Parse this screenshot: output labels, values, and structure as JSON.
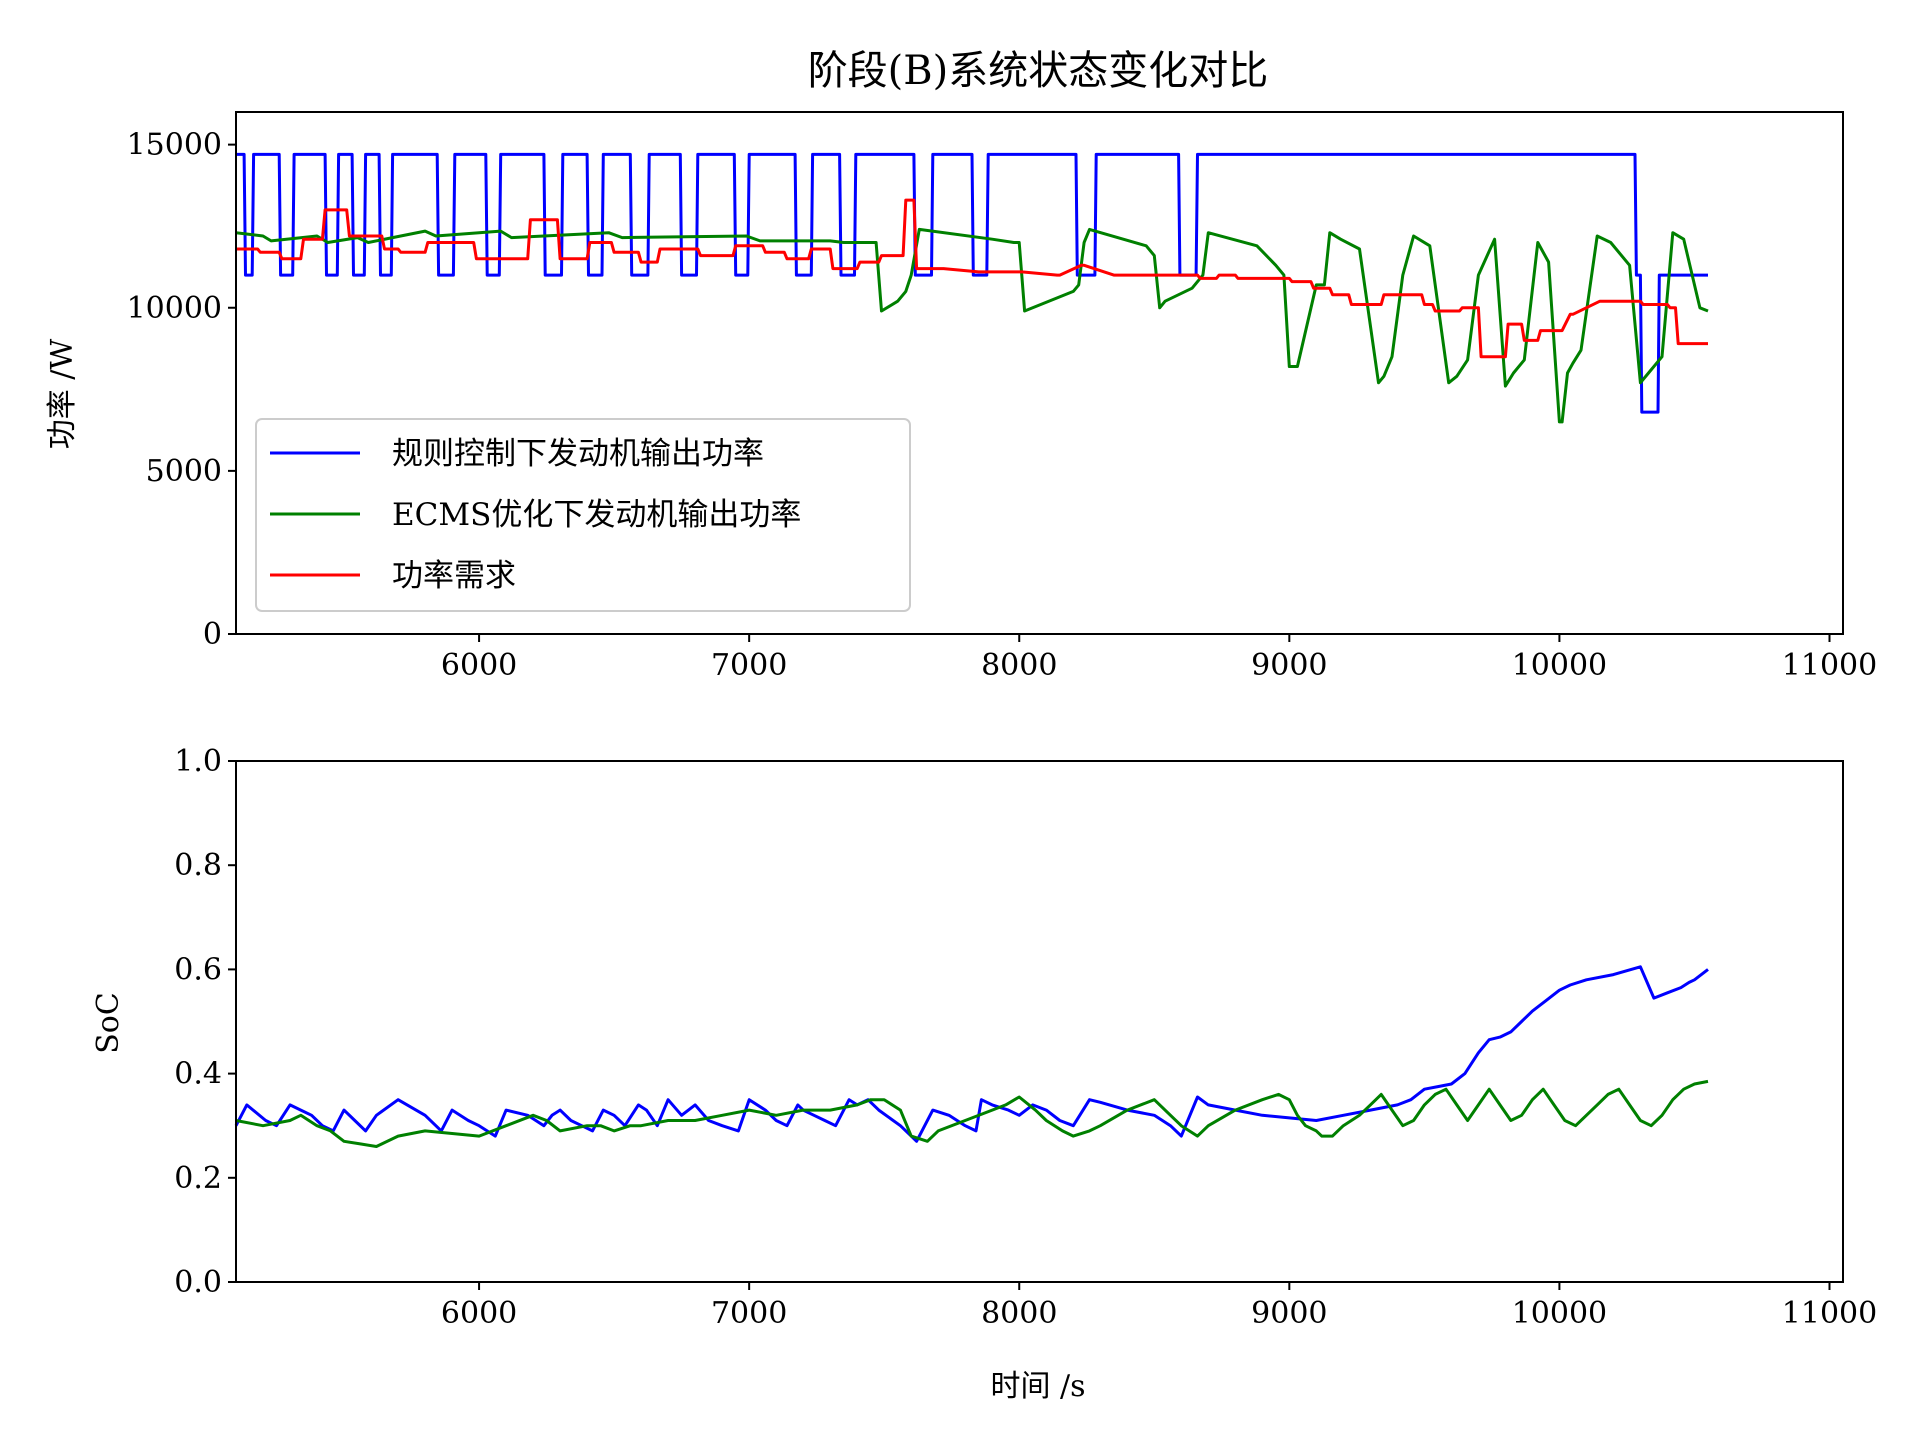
{
  "chart_data": [
    {
      "type": "line",
      "title": "阶段(B)系统状态变化对比",
      "xlabel": "",
      "ylabel": "功率 /W",
      "xlim": [
        5100,
        11050
      ],
      "ylim": [
        0,
        16000
      ],
      "xticks": [
        6000,
        7000,
        8000,
        9000,
        10000,
        11000
      ],
      "yticks": [
        0,
        5000,
        10000,
        15000
      ],
      "legend": "lower-left",
      "grid": false,
      "series": [
        {
          "name": "规则控制下发动机输出功率",
          "color": "#0000ff",
          "x": [
            5100,
            5130,
            5135,
            5160,
            5165,
            5260,
            5265,
            5310,
            5315,
            5430,
            5435,
            5475,
            5480,
            5530,
            5535,
            5575,
            5580,
            5630,
            5635,
            5675,
            5680,
            5845,
            5850,
            5905,
            5910,
            6025,
            6030,
            6075,
            6080,
            6240,
            6245,
            6305,
            6310,
            6400,
            6405,
            6455,
            6460,
            6560,
            6565,
            6625,
            6630,
            6745,
            6750,
            6805,
            6810,
            6945,
            6950,
            6995,
            7000,
            7170,
            7175,
            7230,
            7235,
            7335,
            7340,
            7390,
            7395,
            7610,
            7615,
            7675,
            7680,
            7825,
            7830,
            7880,
            7885,
            8210,
            8215,
            8280,
            8285,
            8590,
            8595,
            8655,
            8660,
            10280,
            10285,
            10300,
            10305,
            10365,
            10370,
            10550
          ],
          "y": [
            14700,
            14700,
            11000,
            11000,
            14700,
            14700,
            11000,
            11000,
            14700,
            14700,
            11000,
            11000,
            14700,
            14700,
            11000,
            11000,
            14700,
            14700,
            11000,
            11000,
            14700,
            14700,
            11000,
            11000,
            14700,
            14700,
            11000,
            11000,
            14700,
            14700,
            11000,
            11000,
            14700,
            14700,
            11000,
            11000,
            14700,
            14700,
            11000,
            11000,
            14700,
            14700,
            11000,
            11000,
            14700,
            14700,
            11000,
            11000,
            14700,
            14700,
            11000,
            11000,
            14700,
            14700,
            11000,
            11000,
            14700,
            14700,
            11000,
            11000,
            14700,
            14700,
            11000,
            11000,
            14700,
            14700,
            11000,
            11000,
            14700,
            14700,
            11000,
            11000,
            14700,
            14700,
            11000,
            11000,
            6800,
            6800,
            11000,
            11000
          ]
        },
        {
          "name": "ECMS优化下发动机输出功率",
          "color": "#008000",
          "x": [
            5100,
            5200,
            5230,
            5400,
            5440,
            5550,
            5590,
            5800,
            5840,
            6080,
            6120,
            6480,
            6530,
            6990,
            7040,
            7300,
            7350,
            7470,
            7490,
            7550,
            7580,
            7600,
            7630,
            7900,
            7980,
            8000,
            8020,
            8200,
            8220,
            8240,
            8260,
            8470,
            8500,
            8520,
            8540,
            8640,
            8680,
            8700,
            8880,
            8950,
            8980,
            9000,
            9030,
            9100,
            9130,
            9150,
            9190,
            9260,
            9330,
            9350,
            9380,
            9420,
            9460,
            9520,
            9590,
            9620,
            9660,
            9700,
            9760,
            9800,
            9830,
            9870,
            9920,
            9960,
            10000,
            10010,
            10030,
            10050,
            10080,
            10140,
            10190,
            10260,
            10300,
            10330,
            10380,
            10420,
            10460,
            10520,
            10550
          ],
          "y": [
            12300,
            12200,
            12050,
            12200,
            12000,
            12150,
            12000,
            12350,
            12200,
            12350,
            12150,
            12300,
            12150,
            12200,
            12050,
            12050,
            12000,
            12000,
            9900,
            10200,
            10500,
            11000,
            12400,
            12100,
            12000,
            12000,
            9900,
            10500,
            10700,
            12000,
            12400,
            11900,
            11600,
            10000,
            10200,
            10600,
            11000,
            12300,
            11900,
            11300,
            11000,
            8200,
            8200,
            10700,
            10700,
            12300,
            12100,
            11800,
            7700,
            7900,
            8500,
            11000,
            12200,
            11900,
            7700,
            7900,
            8400,
            11000,
            12100,
            7600,
            8000,
            8400,
            12000,
            11400,
            6500,
            6500,
            8000,
            8300,
            8700,
            12200,
            12000,
            11300,
            7700,
            8000,
            8500,
            12300,
            12100,
            10000,
            9900
          ]
        },
        {
          "name": "功率需求",
          "color": "#ff0000",
          "x": [
            5100,
            5180,
            5190,
            5260,
            5270,
            5340,
            5350,
            5420,
            5430,
            5510,
            5520,
            5640,
            5650,
            5700,
            5710,
            5800,
            5810,
            5980,
            5990,
            6180,
            6190,
            6290,
            6300,
            6400,
            6410,
            6490,
            6500,
            6590,
            6600,
            6660,
            6670,
            6810,
            6820,
            6940,
            6950,
            7050,
            7060,
            7130,
            7140,
            7220,
            7230,
            7300,
            7310,
            7400,
            7410,
            7480,
            7490,
            7570,
            7580,
            7610,
            7620,
            7700,
            7720,
            7850,
            7860,
            8000,
            8010,
            8140,
            8150,
            8230,
            8240,
            8350,
            8360,
            8500,
            8510,
            8660,
            8670,
            8730,
            8740,
            8800,
            8810,
            9000,
            9010,
            9080,
            9090,
            9150,
            9160,
            9220,
            9230,
            9340,
            9350,
            9490,
            9500,
            9530,
            9540,
            9630,
            9640,
            9700,
            9710,
            9800,
            9810,
            9860,
            9870,
            9920,
            9930,
            10000,
            10010,
            10040,
            10050,
            10150,
            10160,
            10300,
            10310,
            10400,
            10410,
            10430,
            10440,
            10550
          ],
          "y": [
            11800,
            11800,
            11700,
            11700,
            11500,
            11500,
            12100,
            12100,
            13000,
            13000,
            12200,
            12200,
            11800,
            11800,
            11700,
            11700,
            12000,
            12000,
            11500,
            11500,
            12700,
            12700,
            11500,
            11500,
            12000,
            12000,
            11700,
            11700,
            11400,
            11400,
            11800,
            11800,
            11600,
            11600,
            11900,
            11900,
            11700,
            11700,
            11500,
            11500,
            11800,
            11800,
            11200,
            11200,
            11400,
            11400,
            11600,
            11600,
            13300,
            13300,
            11200,
            11200,
            11200,
            11100,
            11100,
            11100,
            11100,
            11000,
            11000,
            11300,
            11300,
            11000,
            11000,
            11000,
            11000,
            11000,
            10900,
            10900,
            11000,
            11000,
            10900,
            10900,
            10800,
            10800,
            10600,
            10600,
            10400,
            10400,
            10100,
            10100,
            10400,
            10400,
            10100,
            10100,
            9900,
            9900,
            10000,
            10000,
            8500,
            8500,
            9500,
            9500,
            9000,
            9000,
            9300,
            9300,
            9300,
            9800,
            9800,
            10200,
            10200,
            10200,
            10100,
            10100,
            10000,
            10000,
            8900,
            8900
          ]
        }
      ]
    },
    {
      "type": "line",
      "title": "",
      "xlabel": "时间 /s",
      "ylabel": "SoC",
      "xlim": [
        5100,
        11050
      ],
      "ylim": [
        0.0,
        1.0
      ],
      "xticks": [
        6000,
        7000,
        8000,
        9000,
        10000,
        11000
      ],
      "yticks": [
        "0.0",
        "0.2",
        "0.4",
        "0.6",
        "0.8",
        "1.0"
      ],
      "grid": false,
      "series": [
        {
          "color": "#0000ff",
          "x": [
            5100,
            5140,
            5210,
            5250,
            5300,
            5340,
            5380,
            5420,
            5460,
            5500,
            5540,
            5580,
            5620,
            5700,
            5800,
            5860,
            5900,
            5960,
            6000,
            6060,
            6100,
            6180,
            6240,
            6270,
            6300,
            6340,
            6380,
            6420,
            6460,
            6500,
            6540,
            6590,
            6620,
            6660,
            6700,
            6750,
            6800,
            6850,
            6900,
            6960,
            7000,
            7060,
            7100,
            7140,
            7180,
            7200,
            7240,
            7280,
            7320,
            7370,
            7400,
            7440,
            7480,
            7560,
            7600,
            7620,
            7680,
            7740,
            7800,
            7840,
            7860,
            7900,
            7960,
            8000,
            8050,
            8100,
            8150,
            8200,
            8260,
            8300,
            8400,
            8500,
            8560,
            8600,
            8660,
            8700,
            8800,
            8900,
            9000,
            9100,
            9200,
            9300,
            9400,
            9450,
            9500,
            9550,
            9600,
            9650,
            9700,
            9740,
            9780,
            9820,
            9860,
            9900,
            9950,
            10000,
            10040,
            10100,
            10200,
            10300,
            10350,
            10400,
            10450,
            10480,
            10500,
            10550
          ],
          "y": [
            0.3,
            0.34,
            0.31,
            0.3,
            0.34,
            0.33,
            0.32,
            0.3,
            0.29,
            0.33,
            0.31,
            0.29,
            0.32,
            0.35,
            0.32,
            0.29,
            0.33,
            0.31,
            0.3,
            0.28,
            0.33,
            0.32,
            0.3,
            0.32,
            0.33,
            0.31,
            0.3,
            0.29,
            0.33,
            0.32,
            0.3,
            0.34,
            0.33,
            0.3,
            0.35,
            0.32,
            0.34,
            0.31,
            0.3,
            0.29,
            0.35,
            0.33,
            0.31,
            0.3,
            0.34,
            0.33,
            0.32,
            0.31,
            0.3,
            0.35,
            0.34,
            0.35,
            0.33,
            0.3,
            0.28,
            0.27,
            0.33,
            0.32,
            0.3,
            0.29,
            0.35,
            0.34,
            0.33,
            0.32,
            0.34,
            0.33,
            0.31,
            0.3,
            0.35,
            0.345,
            0.33,
            0.32,
            0.3,
            0.28,
            0.355,
            0.34,
            0.33,
            0.32,
            0.315,
            0.31,
            0.32,
            0.33,
            0.34,
            0.35,
            0.37,
            0.375,
            0.38,
            0.4,
            0.44,
            0.465,
            0.47,
            0.48,
            0.5,
            0.52,
            0.54,
            0.56,
            0.57,
            0.58,
            0.59,
            0.605,
            0.545,
            0.555,
            0.565,
            0.575,
            0.58,
            0.6
          ]
        },
        {
          "color": "#008000",
          "x": [
            5100,
            5200,
            5300,
            5340,
            5400,
            5450,
            5500,
            5560,
            5620,
            5700,
            5800,
            5900,
            6000,
            6100,
            6200,
            6250,
            6300,
            6400,
            6450,
            6500,
            6560,
            6600,
            6700,
            6800,
            6900,
            7000,
            7100,
            7200,
            7300,
            7400,
            7450,
            7500,
            7560,
            7600,
            7660,
            7700,
            7800,
            7900,
            7950,
            8000,
            8060,
            8100,
            8160,
            8200,
            8260,
            8300,
            8400,
            8500,
            8560,
            8600,
            8660,
            8700,
            8800,
            8900,
            8960,
            9000,
            9030,
            9060,
            9100,
            9120,
            9160,
            9200,
            9260,
            9300,
            9340,
            9380,
            9420,
            9460,
            9500,
            9540,
            9580,
            9620,
            9660,
            9700,
            9740,
            9780,
            9820,
            9860,
            9900,
            9940,
            9980,
            10020,
            10060,
            10100,
            10140,
            10180,
            10220,
            10260,
            10300,
            10340,
            10380,
            10420,
            10460,
            10500,
            10550
          ],
          "y": [
            0.31,
            0.3,
            0.31,
            0.32,
            0.3,
            0.29,
            0.27,
            0.265,
            0.26,
            0.28,
            0.29,
            0.285,
            0.28,
            0.3,
            0.32,
            0.31,
            0.29,
            0.3,
            0.3,
            0.29,
            0.3,
            0.3,
            0.31,
            0.31,
            0.32,
            0.33,
            0.32,
            0.33,
            0.33,
            0.34,
            0.35,
            0.35,
            0.33,
            0.28,
            0.27,
            0.29,
            0.31,
            0.33,
            0.34,
            0.355,
            0.33,
            0.31,
            0.29,
            0.28,
            0.29,
            0.3,
            0.33,
            0.35,
            0.32,
            0.3,
            0.28,
            0.3,
            0.33,
            0.35,
            0.36,
            0.35,
            0.32,
            0.3,
            0.29,
            0.28,
            0.28,
            0.3,
            0.32,
            0.34,
            0.36,
            0.33,
            0.3,
            0.31,
            0.34,
            0.36,
            0.37,
            0.34,
            0.31,
            0.34,
            0.37,
            0.34,
            0.31,
            0.32,
            0.35,
            0.37,
            0.34,
            0.31,
            0.3,
            0.32,
            0.34,
            0.36,
            0.37,
            0.34,
            0.31,
            0.3,
            0.32,
            0.35,
            0.37,
            0.38,
            0.385
          ]
        }
      ]
    }
  ]
}
